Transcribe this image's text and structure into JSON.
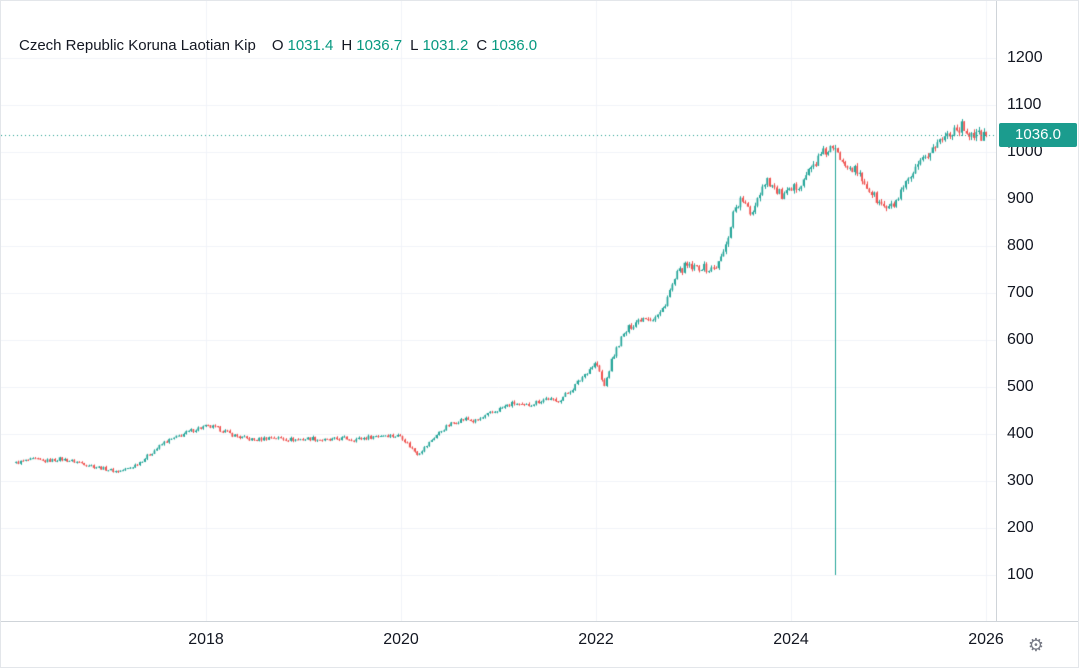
{
  "header": {
    "symbol": "Czech Republic Koruna Laotian Kip",
    "o_label": "O",
    "o_value": "1031.4",
    "h_label": "H",
    "h_value": "1036.7",
    "l_label": "L",
    "l_value": "1031.2",
    "c_label": "C",
    "c_value": "1036.0"
  },
  "price_axis": {
    "last_price_label": "1036.0"
  },
  "settings": {
    "gear_icon": "⚙"
  },
  "chart_data": {
    "type": "candlestick",
    "title": "Czech Republic Koruna Laotian Kip",
    "current_ohlc": {
      "open": 1031.4,
      "high": 1036.7,
      "low": 1031.2,
      "close": 1036.0
    },
    "y_ticks": [
      1200,
      1100,
      1000,
      900,
      800,
      700,
      600,
      500,
      400,
      300,
      200,
      100
    ],
    "x_ticks": [
      2018,
      2020,
      2022,
      2024,
      2026
    ],
    "ylim": [
      60,
      1240
    ],
    "x_range": [
      2016.05,
      2026.0
    ],
    "grid": true,
    "price_line": {
      "value": 1036.0,
      "style": "dotted",
      "label": "1036.0"
    },
    "anomaly": {
      "year": 2024.45,
      "low": 100
    },
    "series_monthly_close": {
      "start_year": 2016.0,
      "points_per_year": 12,
      "values": [
        336,
        340,
        344,
        346,
        342,
        344,
        347,
        344,
        341,
        337,
        332,
        328,
        324,
        320,
        324,
        331,
        342,
        356,
        370,
        384,
        390,
        398,
        406,
        412,
        416,
        414,
        408,
        400,
        394,
        390,
        387,
        390,
        393,
        391,
        389,
        388,
        389,
        391,
        388,
        386,
        389,
        391,
        388,
        390,
        393,
        396,
        398,
        396,
        396,
        375,
        358,
        372,
        392,
        408,
        420,
        428,
        432,
        426,
        434,
        444,
        452,
        460,
        466,
        458,
        464,
        470,
        476,
        468,
        480,
        495,
        515,
        535,
        552,
        500,
        560,
        600,
        625,
        640,
        650,
        645,
        658,
        700,
        740,
        758,
        752,
        756,
        748,
        760,
        800,
        880,
        900,
        865,
        910,
        945,
        920,
        905,
        916,
        932,
        955,
        978,
        998,
        1008,
        990,
        975,
        958,
        935,
        910,
        888,
        878,
        895,
        925,
        952,
        975,
        1000,
        1018,
        1035,
        1048,
        1054,
        1040,
        1034,
        1036
      ]
    },
    "colors": {
      "up": "#26a69a",
      "down": "#ef5350",
      "ohlc_text": "#089981",
      "price_line": "#1b9c8e",
      "price_label_bg": "#1b9c8e",
      "grid": "#f0f3f8",
      "axis_text": "#131722",
      "axis_border": "#cfd4d9"
    }
  }
}
